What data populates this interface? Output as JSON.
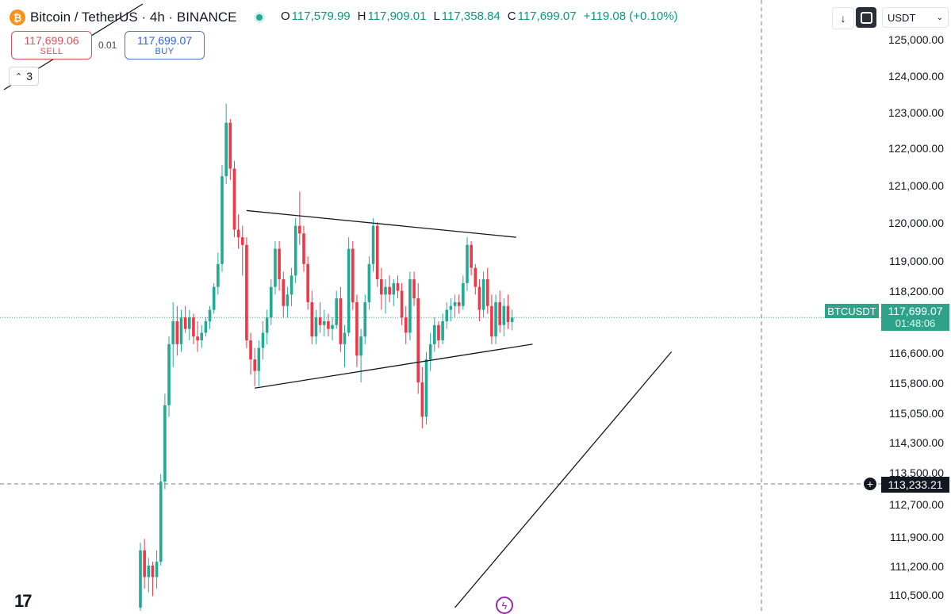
{
  "header": {
    "coin_icon": "bitcoin-icon",
    "title": "Bitcoin / TetherUS · 4h · BINANCE",
    "ohlc": {
      "o_label": "O",
      "o": "117,579.99",
      "h_label": "H",
      "h": "117,909.01",
      "l_label": "L",
      "l": "117,358.84",
      "c_label": "C",
      "c": "117,699.07",
      "change": "+119.08 (+0.10%)"
    }
  },
  "trade": {
    "sell_price": "117,699.06",
    "sell_label": "SELL",
    "spread": "0.01",
    "buy_price": "117,699.07",
    "buy_label": "BUY"
  },
  "indicator_counter": "3",
  "toolbar": {
    "currency": "USDT"
  },
  "price_scale": {
    "labels": [
      "125,000.00",
      "124,000.00",
      "123,000.00",
      "122,000.00",
      "121,000.00",
      "120,000.00",
      "119,000.00",
      "118,200.00",
      "116,600.00",
      "115,800.00",
      "115,050.00",
      "114,300.00",
      "113,500.00",
      "112,700.00",
      "111,900.00",
      "111,200.00",
      "110,500.00"
    ],
    "last_price": "117,699.07",
    "countdown": "01:48:06",
    "symbol_tag": "BTCUSDT",
    "crosshair_price": "113,233.21"
  },
  "colors": {
    "up": "#22ab94",
    "down": "#f23645",
    "last_price": "#2ea38a",
    "sell": "#e0505b",
    "buy": "#2962ff"
  },
  "chart_data": {
    "type": "candlestick",
    "timeframe": "4h",
    "symbol": "BTCUSDT",
    "ylim": [
      110000,
      125500
    ],
    "candles": [
      {
        "o": 110100,
        "h": 111800,
        "l": 109900,
        "c": 111600
      },
      {
        "o": 111600,
        "h": 111900,
        "l": 110600,
        "c": 110900
      },
      {
        "o": 110900,
        "h": 111400,
        "l": 110500,
        "c": 111200
      },
      {
        "o": 111200,
        "h": 111300,
        "l": 110400,
        "c": 110900
      },
      {
        "o": 110900,
        "h": 111600,
        "l": 110600,
        "c": 111300
      },
      {
        "o": 111300,
        "h": 113600,
        "l": 111200,
        "c": 113400
      },
      {
        "o": 113400,
        "h": 115700,
        "l": 113200,
        "c": 115400
      },
      {
        "o": 115400,
        "h": 117200,
        "l": 115100,
        "c": 117000
      },
      {
        "o": 117000,
        "h": 118100,
        "l": 116400,
        "c": 117600
      },
      {
        "o": 117600,
        "h": 118000,
        "l": 116700,
        "c": 117000
      },
      {
        "o": 117000,
        "h": 117900,
        "l": 116800,
        "c": 117700
      },
      {
        "o": 117700,
        "h": 118000,
        "l": 117300,
        "c": 117400
      },
      {
        "o": 117400,
        "h": 117900,
        "l": 117100,
        "c": 117700
      },
      {
        "o": 117700,
        "h": 117800,
        "l": 117000,
        "c": 117200
      },
      {
        "o": 117200,
        "h": 117600,
        "l": 116800,
        "c": 117100
      },
      {
        "o": 117100,
        "h": 117500,
        "l": 116900,
        "c": 117300
      },
      {
        "o": 117300,
        "h": 117700,
        "l": 117200,
        "c": 117600
      },
      {
        "o": 117600,
        "h": 118000,
        "l": 117400,
        "c": 117900
      },
      {
        "o": 117900,
        "h": 118600,
        "l": 117800,
        "c": 118500
      },
      {
        "o": 118500,
        "h": 119400,
        "l": 118300,
        "c": 119100
      },
      {
        "o": 119100,
        "h": 121700,
        "l": 118900,
        "c": 121400
      },
      {
        "o": 121400,
        "h": 123300,
        "l": 121200,
        "c": 122800
      },
      {
        "o": 122800,
        "h": 122900,
        "l": 121300,
        "c": 121600
      },
      {
        "o": 121600,
        "h": 121800,
        "l": 119800,
        "c": 120000
      },
      {
        "o": 120000,
        "h": 120400,
        "l": 119500,
        "c": 119800
      },
      {
        "o": 119800,
        "h": 120100,
        "l": 118800,
        "c": 119600
      },
      {
        "o": 119600,
        "h": 119800,
        "l": 116900,
        "c": 117100
      },
      {
        "o": 117100,
        "h": 117300,
        "l": 116200,
        "c": 116600
      },
      {
        "o": 116600,
        "h": 116900,
        "l": 115900,
        "c": 116300
      },
      {
        "o": 116300,
        "h": 117100,
        "l": 115900,
        "c": 116900
      },
      {
        "o": 116900,
        "h": 117600,
        "l": 116600,
        "c": 117300
      },
      {
        "o": 117300,
        "h": 117900,
        "l": 117000,
        "c": 117700
      },
      {
        "o": 117700,
        "h": 118700,
        "l": 117500,
        "c": 118500
      },
      {
        "o": 118500,
        "h": 119700,
        "l": 118300,
        "c": 119500
      },
      {
        "o": 119500,
        "h": 119700,
        "l": 118400,
        "c": 118700
      },
      {
        "o": 118700,
        "h": 118900,
        "l": 117700,
        "c": 118000
      },
      {
        "o": 118000,
        "h": 118500,
        "l": 117700,
        "c": 118300
      },
      {
        "o": 118300,
        "h": 119000,
        "l": 118000,
        "c": 118800
      },
      {
        "o": 118800,
        "h": 120300,
        "l": 118600,
        "c": 120100
      },
      {
        "o": 120100,
        "h": 121000,
        "l": 119600,
        "c": 119900
      },
      {
        "o": 119900,
        "h": 120100,
        "l": 118900,
        "c": 119100
      },
      {
        "o": 119100,
        "h": 119300,
        "l": 117900,
        "c": 118100
      },
      {
        "o": 118100,
        "h": 118400,
        "l": 117000,
        "c": 117200
      },
      {
        "o": 117200,
        "h": 117900,
        "l": 117000,
        "c": 117700
      },
      {
        "o": 117700,
        "h": 118100,
        "l": 117300,
        "c": 117500
      },
      {
        "o": 117500,
        "h": 117900,
        "l": 117200,
        "c": 117600
      },
      {
        "o": 117600,
        "h": 117800,
        "l": 117200,
        "c": 117400
      },
      {
        "o": 117400,
        "h": 117700,
        "l": 117100,
        "c": 117500
      },
      {
        "o": 117500,
        "h": 118400,
        "l": 117400,
        "c": 118200
      },
      {
        "o": 118200,
        "h": 118500,
        "l": 116800,
        "c": 117000
      },
      {
        "o": 117000,
        "h": 117500,
        "l": 116400,
        "c": 117300
      },
      {
        "o": 117300,
        "h": 119800,
        "l": 117200,
        "c": 119500
      },
      {
        "o": 119500,
        "h": 119700,
        "l": 117900,
        "c": 118100
      },
      {
        "o": 118100,
        "h": 118300,
        "l": 116400,
        "c": 116700
      },
      {
        "o": 116700,
        "h": 117400,
        "l": 116000,
        "c": 117200
      },
      {
        "o": 117200,
        "h": 118300,
        "l": 117000,
        "c": 118100
      },
      {
        "o": 118100,
        "h": 119300,
        "l": 117900,
        "c": 119100
      },
      {
        "o": 119100,
        "h": 120300,
        "l": 118900,
        "c": 120100
      },
      {
        "o": 120100,
        "h": 120200,
        "l": 118500,
        "c": 118700
      },
      {
        "o": 118700,
        "h": 119000,
        "l": 117900,
        "c": 118300
      },
      {
        "o": 118300,
        "h": 118700,
        "l": 117800,
        "c": 118500
      },
      {
        "o": 118500,
        "h": 118800,
        "l": 118100,
        "c": 118300
      },
      {
        "o": 118300,
        "h": 118700,
        "l": 118000,
        "c": 118600
      },
      {
        "o": 118600,
        "h": 118800,
        "l": 118200,
        "c": 118400
      },
      {
        "o": 118400,
        "h": 118600,
        "l": 117500,
        "c": 117700
      },
      {
        "o": 117700,
        "h": 118000,
        "l": 117000,
        "c": 117300
      },
      {
        "o": 117300,
        "h": 118900,
        "l": 117100,
        "c": 118700
      },
      {
        "o": 118700,
        "h": 118900,
        "l": 118000,
        "c": 118200
      },
      {
        "o": 118200,
        "h": 118600,
        "l": 115700,
        "c": 116000
      },
      {
        "o": 116000,
        "h": 116400,
        "l": 114800,
        "c": 115100
      },
      {
        "o": 115100,
        "h": 116800,
        "l": 114900,
        "c": 116600
      },
      {
        "o": 116600,
        "h": 117300,
        "l": 116300,
        "c": 117000
      },
      {
        "o": 117000,
        "h": 117700,
        "l": 116800,
        "c": 117500
      },
      {
        "o": 117500,
        "h": 117600,
        "l": 116900,
        "c": 117100
      },
      {
        "o": 117100,
        "h": 117800,
        "l": 117000,
        "c": 117600
      },
      {
        "o": 117600,
        "h": 118100,
        "l": 117400,
        "c": 117900
      },
      {
        "o": 117900,
        "h": 118200,
        "l": 117600,
        "c": 118000
      },
      {
        "o": 118000,
        "h": 118300,
        "l": 117700,
        "c": 118100
      },
      {
        "o": 118100,
        "h": 118300,
        "l": 117800,
        "c": 118000
      },
      {
        "o": 118000,
        "h": 118800,
        "l": 117900,
        "c": 118600
      },
      {
        "o": 118600,
        "h": 119800,
        "l": 118400,
        "c": 119600
      },
      {
        "o": 119600,
        "h": 119700,
        "l": 118800,
        "c": 119000
      },
      {
        "o": 119000,
        "h": 119100,
        "l": 118300,
        "c": 118500
      },
      {
        "o": 118500,
        "h": 118700,
        "l": 117600,
        "c": 117900
      },
      {
        "o": 117900,
        "h": 118900,
        "l": 117700,
        "c": 118700
      },
      {
        "o": 118700,
        "h": 119000,
        "l": 117800,
        "c": 118000
      },
      {
        "o": 118000,
        "h": 118300,
        "l": 117000,
        "c": 117200
      },
      {
        "o": 117200,
        "h": 118300,
        "l": 117000,
        "c": 118100
      },
      {
        "o": 118100,
        "h": 118400,
        "l": 117300,
        "c": 117500
      },
      {
        "o": 117500,
        "h": 118200,
        "l": 117200,
        "c": 118000
      },
      {
        "o": 118000,
        "h": 118300,
        "l": 117400,
        "c": 117580
      },
      {
        "o": 117580,
        "h": 117910,
        "l": 117360,
        "c": 117699
      }
    ],
    "trendlines": [
      {
        "name": "triangle-upper",
        "from": {
          "candle": 26,
          "price": 120500
        },
        "to": {
          "candle": 92,
          "price": 119800
        }
      },
      {
        "name": "triangle-lower",
        "from": {
          "candle": 28,
          "price": 115850
        },
        "to": {
          "candle": 96,
          "price": 117000
        }
      },
      {
        "name": "ascending-support",
        "from": {
          "candle": 77,
          "price": 110100
        },
        "to": {
          "candle": 130,
          "price": 116800
        }
      }
    ]
  }
}
